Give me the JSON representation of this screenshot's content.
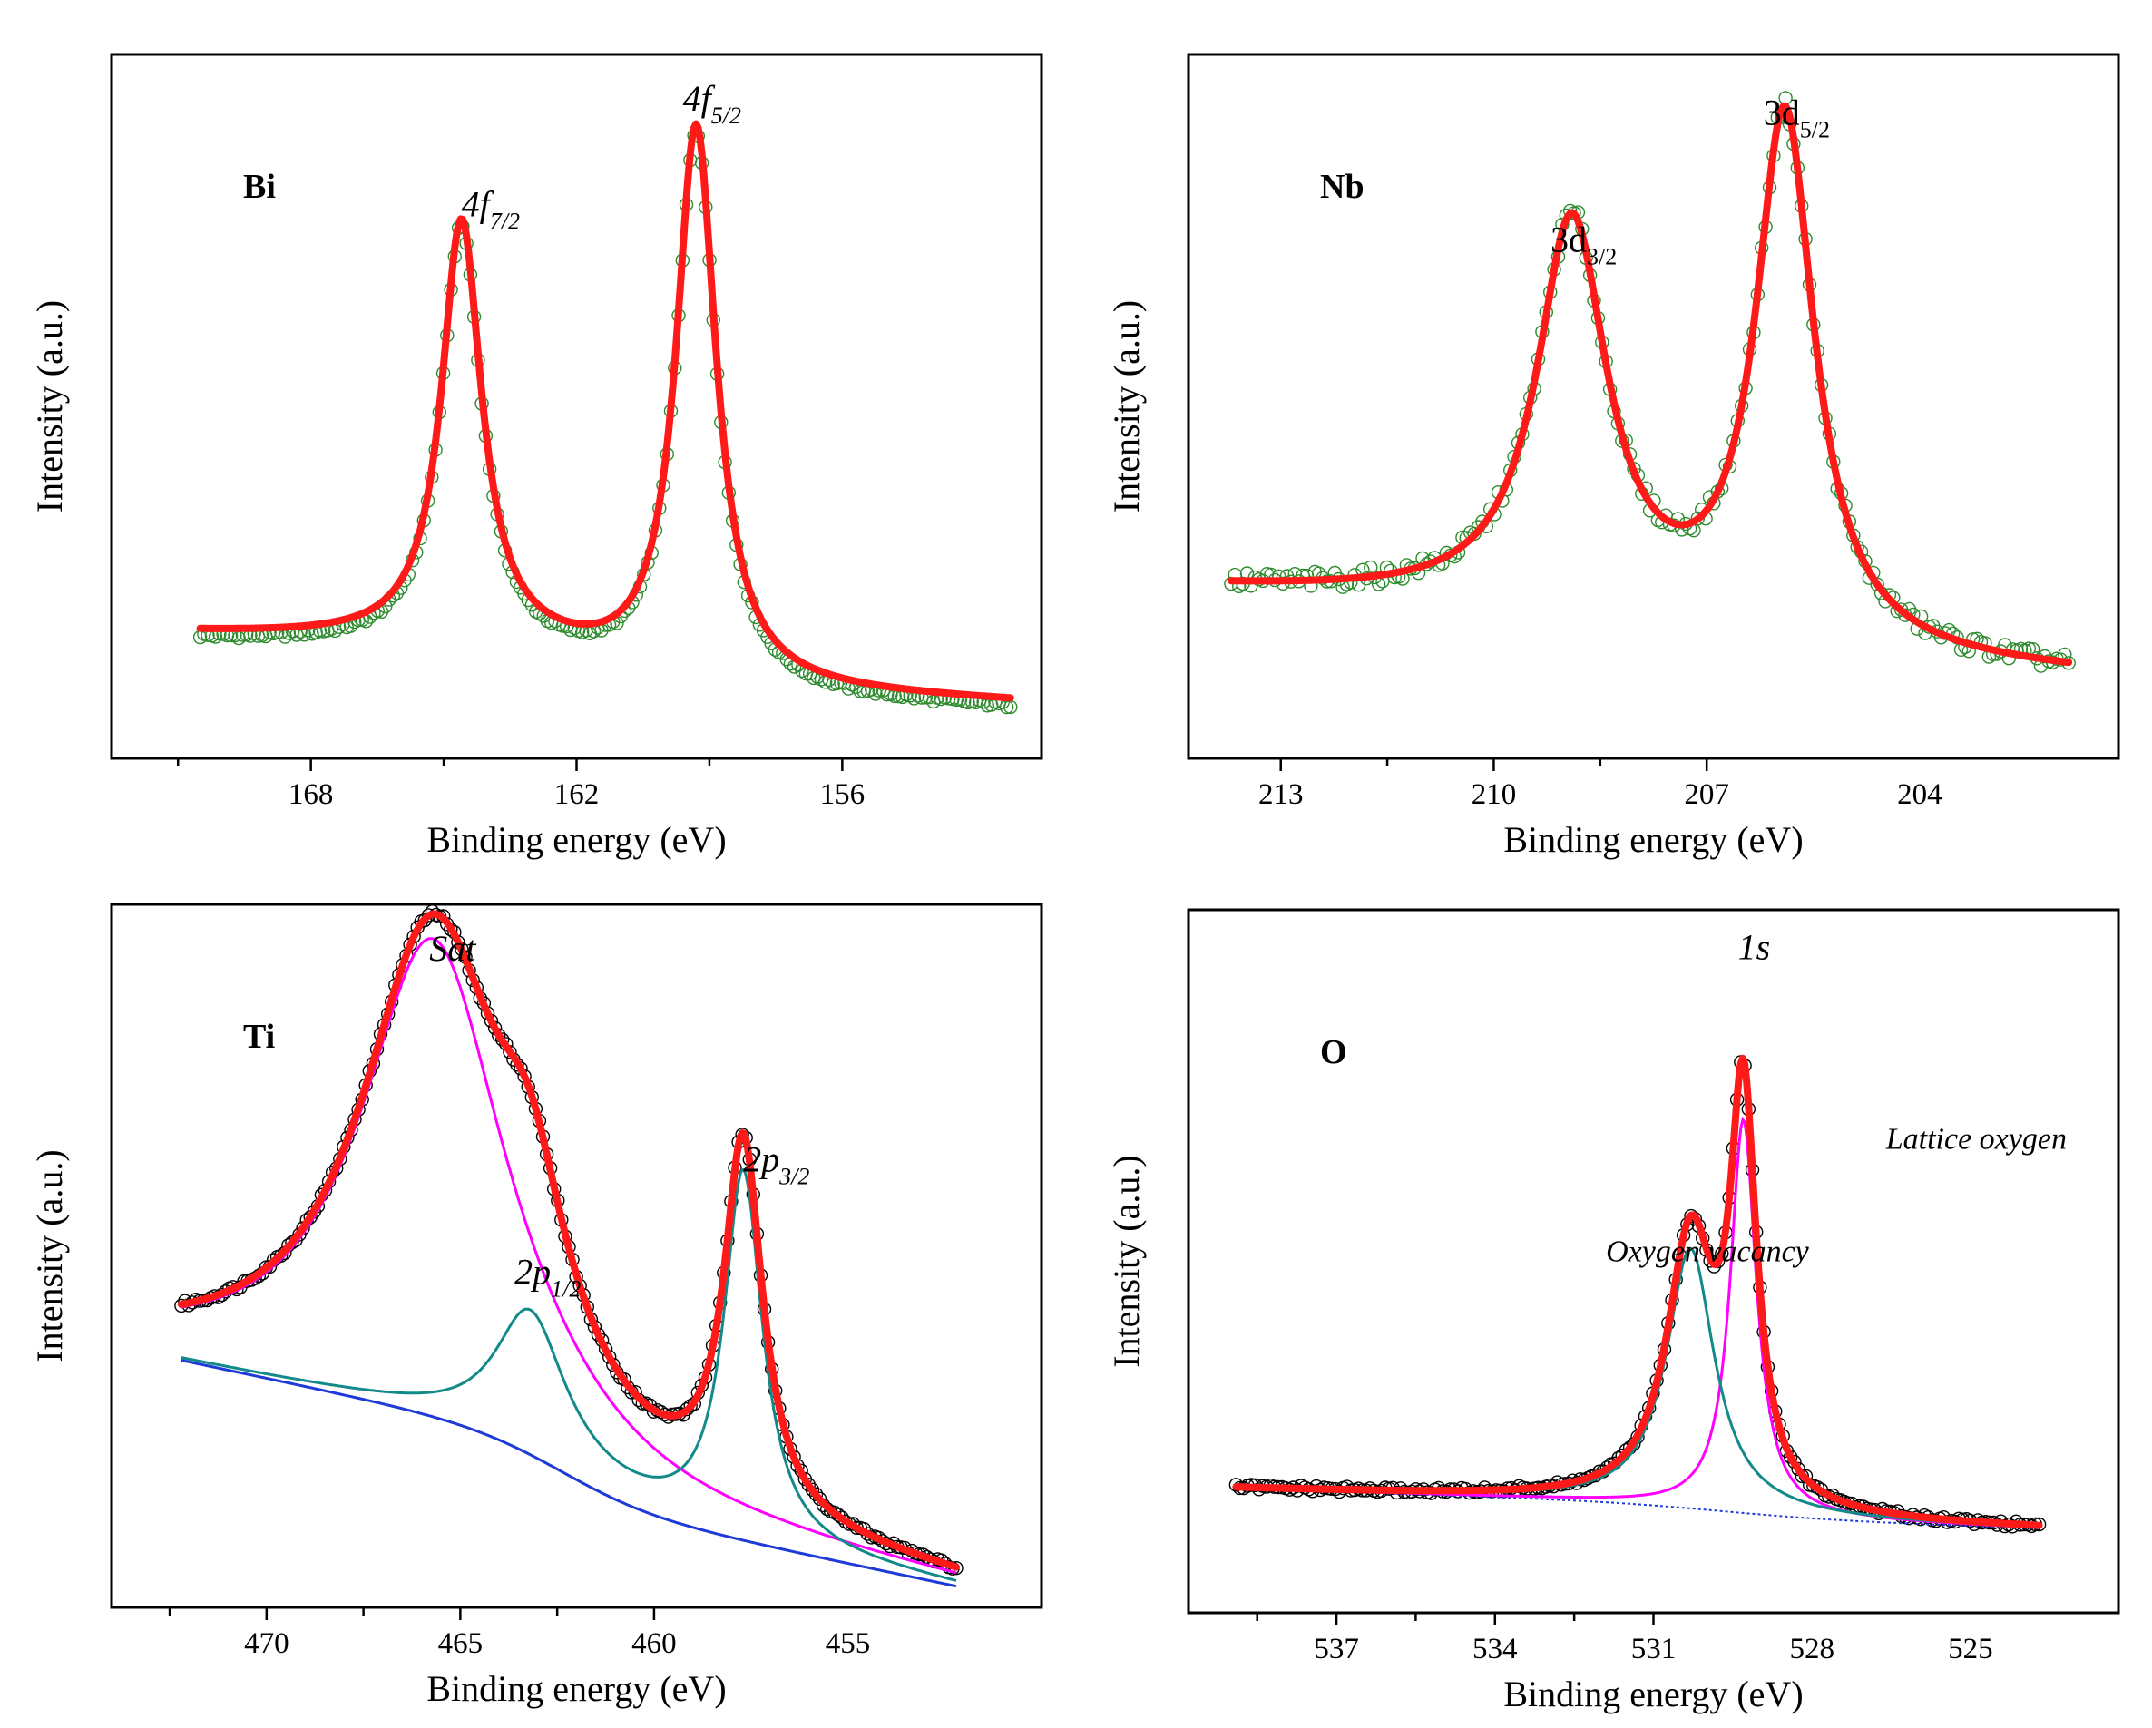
{
  "chart_data": [
    {
      "type": "line",
      "panel": "Bi",
      "title": "",
      "xlabel": "Binding energy (eV)",
      "ylabel": "Intensity (a.u.)",
      "xlim": [
        172.5,
        151.5
      ],
      "xticks": [
        168,
        162,
        156
      ],
      "ylim": [
        0,
        1
      ],
      "label_style": "italic",
      "peak_labels": [
        {
          "main": "4f",
          "sub": "5/2",
          "x": 159.6,
          "y": 0.92
        },
        {
          "main": "4f",
          "sub": "7/2",
          "x": 164.6,
          "y": 0.77
        }
      ],
      "peaks": [
        {
          "center": 164.6,
          "height": 0.6,
          "width": 0.55
        },
        {
          "center": 159.3,
          "height": 0.79,
          "width": 0.55
        }
      ],
      "baseline": {
        "start": 0.16,
        "end": 0.08,
        "step": 0.05
      },
      "series": [
        {
          "name": "Experimental",
          "style": "open-circles",
          "color": "#2e8b2e",
          "x_range": [
            170.5,
            152.2
          ]
        },
        {
          "name": "Fitted",
          "style": "line",
          "color": "#ff1a1a",
          "x_range": [
            170.5,
            152.2
          ]
        }
      ]
    },
    {
      "type": "line",
      "panel": "Nb",
      "title": "",
      "xlabel": "Binding energy (eV)",
      "ylabel": "Intensity (a.u.)",
      "xlim": [
        214.3,
        201.2
      ],
      "xticks": [
        213,
        210,
        207,
        204
      ],
      "ylim": [
        0,
        1
      ],
      "label_style": "roman",
      "peak_labels": [
        {
          "main": "3d",
          "sub": "3/2",
          "x": 209.2,
          "y": 0.72
        },
        {
          "main": "3d",
          "sub": "5/2",
          "x": 206.2,
          "y": 0.9
        }
      ],
      "peaks": [
        {
          "center": 208.9,
          "height": 0.55,
          "width": 0.6
        },
        {
          "center": 205.9,
          "height": 0.75,
          "width": 0.5
        }
      ],
      "baseline": {
        "start": 0.22,
        "end": 0.12,
        "step": 0.06
      },
      "series": [
        {
          "name": "Experimental",
          "style": "open-circles",
          "color": "#2e8b2e",
          "x_range": [
            213.7,
            201.9
          ]
        },
        {
          "name": "Fitted",
          "style": "line",
          "color": "#ff1a1a",
          "x_range": [
            213.7,
            201.9
          ]
        }
      ]
    },
    {
      "type": "line",
      "panel": "Ti",
      "title": "",
      "xlabel": "Binding energy (eV)",
      "ylabel": "Intensity (a.u.)",
      "xlim": [
        474.0,
        450.0
      ],
      "xticks": [
        470,
        465,
        460,
        455
      ],
      "ylim": [
        0,
        1
      ],
      "label_style": "italic",
      "peak_labels": [
        {
          "main": "Sat",
          "sub": "",
          "x": 465.8,
          "y": 0.92
        },
        {
          "main": "2p",
          "sub": "1/2",
          "x": 463.6,
          "y": 0.46
        },
        {
          "main": "2p",
          "sub": "3/2",
          "x": 457.7,
          "y": 0.62
        }
      ],
      "peaks": [
        {
          "name": "Sat",
          "center": 465.7,
          "height": 0.68,
          "width": 2.3
        },
        {
          "name": "2p1/2",
          "center": 463.2,
          "height": 0.2,
          "width": 1.1
        },
        {
          "name": "2p3/2",
          "center": 457.7,
          "height": 0.52,
          "width": 0.6
        }
      ],
      "baseline": {
        "start": 0.32,
        "end": 0.03,
        "step": 0.09
      },
      "series": [
        {
          "name": "Experimental",
          "style": "open-circles",
          "color": "#000000",
          "x_range": [
            472.2,
            452.2
          ]
        },
        {
          "name": "Fitted",
          "style": "line",
          "color": "#ff1a1a",
          "x_range": [
            472.2,
            452.2
          ]
        },
        {
          "name": "Sat component",
          "style": "line",
          "color": "#ff00ff",
          "x_range": [
            472.2,
            452.2
          ]
        },
        {
          "name": "2p components",
          "style": "line",
          "color": "#138a8a",
          "x_range": [
            472.2,
            452.2
          ]
        },
        {
          "name": "Background",
          "style": "line",
          "color": "#1f3ad6",
          "x_range": [
            472.2,
            452.2
          ]
        }
      ]
    },
    {
      "type": "line",
      "panel": "O",
      "title": "",
      "xlabel": "Binding energy (eV)",
      "ylabel": "Intensity (a.u.)",
      "xlim": [
        539.8,
        522.2
      ],
      "xticks": [
        537,
        534,
        531,
        528,
        525
      ],
      "ylim": [
        0,
        1
      ],
      "label_style": "italic",
      "peak_labels": [
        {
          "main": "1s",
          "sub": "",
          "x": 529.4,
          "y": 0.93
        }
      ],
      "annotations": [
        {
          "text": "Lattice oxygen",
          "x": 526.6,
          "y": 0.66
        },
        {
          "text": "Oxygen vacancy",
          "x": 531.9,
          "y": 0.5
        }
      ],
      "peaks": [
        {
          "name": "Oxygen vacancy",
          "center": 530.3,
          "height": 0.37,
          "width": 0.55
        },
        {
          "name": "Lattice oxygen",
          "center": 529.3,
          "height": 0.56,
          "width": 0.3
        }
      ],
      "baseline": {
        "start": 0.17,
        "end": 0.12,
        "step": 0.02
      },
      "series": [
        {
          "name": "Experimental",
          "style": "open-circles",
          "color": "#000000",
          "x_range": [
            538.9,
            523.7
          ]
        },
        {
          "name": "Fitted",
          "style": "line",
          "color": "#ff1a1a",
          "x_range": [
            538.9,
            523.7
          ]
        },
        {
          "name": "Lattice oxygen",
          "style": "line",
          "color": "#ff00ff",
          "x_range": [
            538.9,
            523.7
          ]
        },
        {
          "name": "Oxygen vacancy",
          "style": "line",
          "color": "#138a8a",
          "x_range": [
            538.9,
            523.7
          ]
        },
        {
          "name": "Background",
          "style": "dotted-line",
          "color": "#1f3ad6",
          "x_range": [
            538.9,
            523.7
          ]
        }
      ]
    }
  ]
}
